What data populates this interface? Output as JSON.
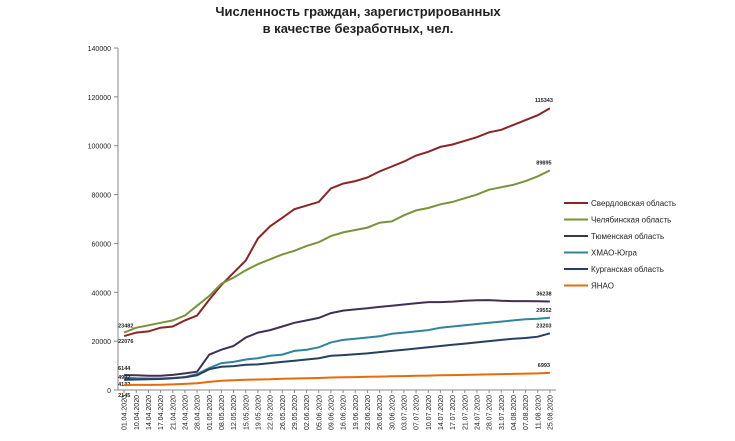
{
  "chart_data": {
    "type": "line",
    "title": [
      "Численность граждан, зарегистрированных",
      "в качестве безработных, чел."
    ],
    "categories": [
      "01.04.2020",
      "10.04.2020",
      "14.04.2020",
      "17.04.2020",
      "21.04.2020",
      "24.04.2020",
      "28.04.2020",
      "01.05.2020",
      "08.05.2020",
      "12.05.2020",
      "15.05.2020",
      "19.05.2020",
      "22.05.2020",
      "26.05.2020",
      "29.05.2020",
      "02.06.2020",
      "05.06.2020",
      "09.06.2020",
      "16.06.2020",
      "19.06.2020",
      "23.06.2020",
      "26.06.2020",
      "30.06.2020",
      "03.07.2020",
      "07.07.2020",
      "10.07.2020",
      "14.07.2020",
      "17.07.2020",
      "21.07.2020",
      "24.07.2020",
      "28.07.2020",
      "31.07.2020",
      "04.08.2020",
      "07.08.2020",
      "11.08.2020",
      "25.08.2020"
    ],
    "series": [
      {
        "name": "Свердловская область",
        "color": "#8b2525",
        "values": [
          22076,
          23500,
          24000,
          25500,
          26000,
          28500,
          30500,
          37000,
          43000,
          48000,
          53000,
          62000,
          67000,
          70500,
          74000,
          75500,
          77000,
          82500,
          84500,
          85500,
          87000,
          89500,
          91500,
          93500,
          96000,
          97500,
          99500,
          100500,
          102000,
          103500,
          105500,
          106500,
          108500,
          110500,
          112500,
          115343
        ]
      },
      {
        "name": "Челябинская область",
        "color": "#77933c",
        "values": [
          23482,
          25500,
          26500,
          27500,
          28500,
          30500,
          34500,
          38500,
          43500,
          46000,
          49000,
          51500,
          53500,
          55500,
          57000,
          59000,
          60500,
          63000,
          64500,
          65500,
          66500,
          68500,
          69000,
          71500,
          73500,
          74500,
          76000,
          77000,
          78500,
          80000,
          82000,
          83000,
          84000,
          85500,
          87500,
          89895
        ]
      },
      {
        "name": "Тюменская область",
        "color": "#403152",
        "values": [
          6144,
          6000,
          5800,
          5800,
          6200,
          6800,
          7500,
          14500,
          16500,
          18000,
          21500,
          23500,
          24500,
          26000,
          27500,
          28500,
          29500,
          31500,
          32500,
          33000,
          33500,
          34000,
          34500,
          35000,
          35500,
          36000,
          36000,
          36200,
          36500,
          36700,
          36800,
          36500,
          36400,
          36400,
          36300,
          36238
        ]
      },
      {
        "name": "ХМАО-Югра",
        "color": "#31849b",
        "values": [
          4992,
          4800,
          4700,
          4700,
          4900,
          5300,
          6500,
          9000,
          11000,
          11500,
          12500,
          13000,
          14000,
          14500,
          16000,
          16500,
          17500,
          19500,
          20500,
          21000,
          21500,
          22000,
          23000,
          23500,
          24000,
          24500,
          25500,
          26000,
          26500,
          27000,
          27500,
          28000,
          28500,
          29000,
          29200,
          29552
        ]
      },
      {
        "name": "Курганская область",
        "color": "#254061",
        "values": [
          4132,
          4300,
          4400,
          4500,
          4800,
          5200,
          6000,
          8500,
          9500,
          9800,
          10300,
          10500,
          11000,
          11500,
          12000,
          12500,
          13000,
          14000,
          14300,
          14600,
          15000,
          15500,
          16000,
          16500,
          17000,
          17500,
          18000,
          18500,
          19000,
          19500,
          20000,
          20500,
          21000,
          21300,
          21800,
          23203
        ]
      },
      {
        "name": "ЯНАО",
        "color": "#e46c0a",
        "values": [
          2145,
          2100,
          2100,
          2150,
          2300,
          2500,
          2800,
          3300,
          3800,
          4000,
          4200,
          4300,
          4400,
          4600,
          4700,
          4800,
          4900,
          5100,
          5200,
          5300,
          5400,
          5500,
          5600,
          5700,
          5800,
          5900,
          6000,
          6100,
          6200,
          6300,
          6400,
          6500,
          6600,
          6700,
          6800,
          6993
        ]
      }
    ],
    "ylim": [
      0,
      140000
    ],
    "yticks": [
      0,
      20000,
      40000,
      60000,
      80000,
      100000,
      120000,
      140000
    ],
    "grid": false,
    "legend": "right"
  }
}
